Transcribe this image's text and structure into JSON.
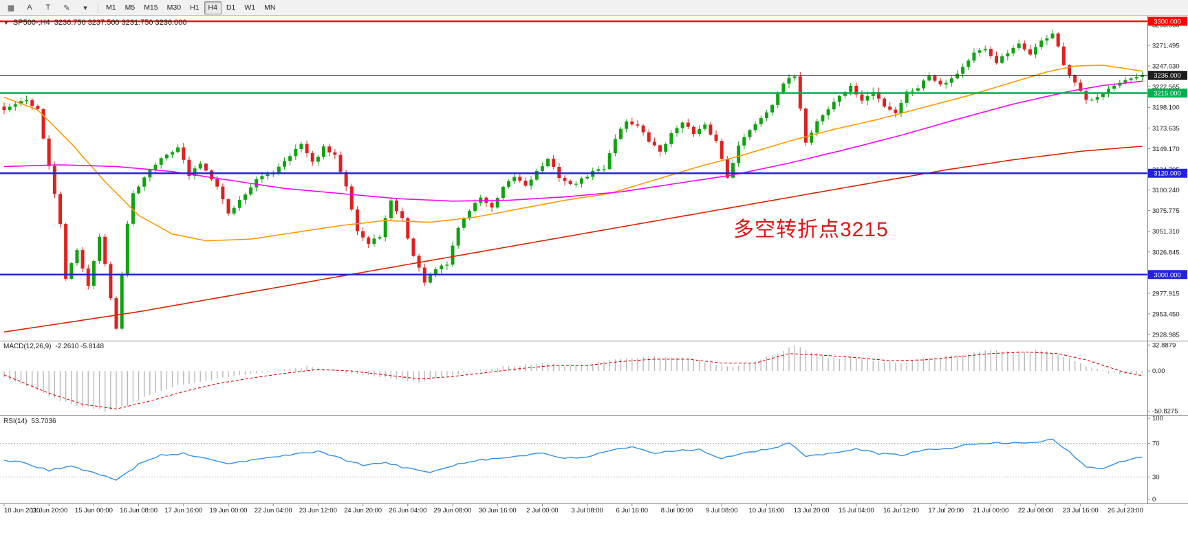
{
  "toolbar": {
    "tools": [
      {
        "name": "docking-handle-icon",
        "glyph": "▦"
      },
      {
        "name": "cursor-mode-icon",
        "glyph": "A"
      },
      {
        "name": "text-label-icon",
        "glyph": "T"
      },
      {
        "name": "draw-pencil-icon",
        "glyph": "✎"
      },
      {
        "name": "tool-dropdown-icon",
        "glyph": "▾"
      }
    ],
    "timeframes": [
      "M1",
      "M5",
      "M15",
      "M30",
      "H1",
      "H4",
      "D1",
      "W1",
      "MN"
    ],
    "active_timeframe": "H4"
  },
  "chart": {
    "title": "SP500-,H4",
    "ohlc": "3236.750 3237.500 3231.750 3236.000",
    "annotation": {
      "text": "多空转折点3215",
      "color": "#e01414"
    }
  },
  "chart_data": {
    "type": "candlestick",
    "symbol": "SP500-",
    "timeframe": "H4",
    "bars": 204,
    "colors": {
      "up": "#10a310",
      "down": "#e02020",
      "ma_fast": "#ff9900",
      "ma_mid": "#ff00ff",
      "ma_slow": "#dd2200",
      "macd_hist": "#b8b8b8",
      "macd_signal": "#dd0000",
      "rsi_line": "#2e90e8",
      "axis_text": "#1a1a1a",
      "border": "#808080"
    },
    "price_axis": {
      "visible_range": [
        2921.7,
        3306.5
      ],
      "ticks": [
        "3295.960",
        "3271.495",
        "3247.030",
        "3222.565",
        "3198.100",
        "3173.635",
        "3149.170",
        "3124.705",
        "3100.240",
        "3075.775",
        "3051.310",
        "3026.845",
        "3002.380",
        "2977.915",
        "2953.450",
        "2928.985"
      ]
    },
    "levels": [
      {
        "price": 3300.0,
        "label": "3300.000",
        "color": "#ff0000",
        "width": 2.5,
        "style": "line"
      },
      {
        "price": 3236.0,
        "label": "3236.000",
        "color": "#1c1c1c",
        "width": 1,
        "style": "current"
      },
      {
        "price": 3215.0,
        "label": "3215.000",
        "color": "#00b050",
        "width": 2.5,
        "style": "line"
      },
      {
        "price": 3120.0,
        "label": "3120.000",
        "color": "#2222dd",
        "width": 2.5,
        "style": "line"
      },
      {
        "price": 3000.0,
        "label": "3000.000",
        "color": "#2222dd",
        "width": 2.5,
        "style": "line"
      }
    ],
    "close_keypoints": [
      [
        0,
        3195
      ],
      [
        2,
        3202
      ],
      [
        4,
        3206
      ],
      [
        6,
        3196
      ],
      [
        8,
        3128
      ],
      [
        10,
        3060
      ],
      [
        11,
        2996
      ],
      [
        13,
        3028
      ],
      [
        15,
        2988
      ],
      [
        17,
        3044
      ],
      [
        18,
        3012
      ],
      [
        20,
        2936
      ],
      [
        22,
        3062
      ],
      [
        23,
        3096
      ],
      [
        26,
        3126
      ],
      [
        29,
        3142
      ],
      [
        31,
        3152
      ],
      [
        33,
        3117
      ],
      [
        35,
        3132
      ],
      [
        38,
        3106
      ],
      [
        40,
        3072
      ],
      [
        43,
        3096
      ],
      [
        45,
        3112
      ],
      [
        48,
        3122
      ],
      [
        51,
        3142
      ],
      [
        53,
        3154
      ],
      [
        55,
        3132
      ],
      [
        57,
        3150
      ],
      [
        59,
        3140
      ],
      [
        61,
        3106
      ],
      [
        63,
        3052
      ],
      [
        65,
        3036
      ],
      [
        67,
        3046
      ],
      [
        69,
        3086
      ],
      [
        71,
        3066
      ],
      [
        73,
        3022
      ],
      [
        75,
        2992
      ],
      [
        77,
        3006
      ],
      [
        79,
        3012
      ],
      [
        81,
        3056
      ],
      [
        83,
        3076
      ],
      [
        85,
        3092
      ],
      [
        87,
        3078
      ],
      [
        89,
        3102
      ],
      [
        91,
        3116
      ],
      [
        93,
        3106
      ],
      [
        95,
        3122
      ],
      [
        97,
        3136
      ],
      [
        99,
        3116
      ],
      [
        101,
        3106
      ],
      [
        103,
        3112
      ],
      [
        105,
        3122
      ],
      [
        107,
        3126
      ],
      [
        109,
        3162
      ],
      [
        111,
        3182
      ],
      [
        113,
        3176
      ],
      [
        115,
        3158
      ],
      [
        117,
        3146
      ],
      [
        119,
        3166
      ],
      [
        121,
        3182
      ],
      [
        123,
        3166
      ],
      [
        125,
        3176
      ],
      [
        127,
        3158
      ],
      [
        129,
        3116
      ],
      [
        131,
        3152
      ],
      [
        133,
        3172
      ],
      [
        135,
        3186
      ],
      [
        137,
        3202
      ],
      [
        139,
        3226
      ],
      [
        141,
        3236
      ],
      [
        142,
        3198
      ],
      [
        143,
        3156
      ],
      [
        145,
        3182
      ],
      [
        147,
        3196
      ],
      [
        149,
        3212
      ],
      [
        151,
        3222
      ],
      [
        153,
        3206
      ],
      [
        155,
        3216
      ],
      [
        157,
        3200
      ],
      [
        159,
        3192
      ],
      [
        161,
        3216
      ],
      [
        163,
        3222
      ],
      [
        165,
        3236
      ],
      [
        167,
        3226
      ],
      [
        169,
        3232
      ],
      [
        171,
        3246
      ],
      [
        173,
        3262
      ],
      [
        175,
        3266
      ],
      [
        177,
        3252
      ],
      [
        179,
        3262
      ],
      [
        181,
        3272
      ],
      [
        183,
        3262
      ],
      [
        185,
        3276
      ],
      [
        187,
        3286
      ],
      [
        188,
        3270
      ],
      [
        189,
        3246
      ],
      [
        191,
        3226
      ],
      [
        193,
        3206
      ],
      [
        195,
        3212
      ],
      [
        197,
        3220
      ],
      [
        199,
        3226
      ],
      [
        201,
        3231
      ],
      [
        203,
        3236
      ]
    ],
    "moving_averages": [
      {
        "name": "ma-fast-orange",
        "color_key": "ma_fast",
        "keypoints": [
          [
            0,
            3210
          ],
          [
            6,
            3195
          ],
          [
            12,
            3155
          ],
          [
            18,
            3110
          ],
          [
            24,
            3070
          ],
          [
            30,
            3048
          ],
          [
            36,
            3040
          ],
          [
            44,
            3042
          ],
          [
            52,
            3050
          ],
          [
            60,
            3058
          ],
          [
            68,
            3064
          ],
          [
            76,
            3062
          ],
          [
            84,
            3068
          ],
          [
            92,
            3078
          ],
          [
            100,
            3088
          ],
          [
            108,
            3096
          ],
          [
            116,
            3112
          ],
          [
            124,
            3128
          ],
          [
            132,
            3142
          ],
          [
            140,
            3158
          ],
          [
            148,
            3172
          ],
          [
            156,
            3184
          ],
          [
            164,
            3198
          ],
          [
            172,
            3212
          ],
          [
            180,
            3228
          ],
          [
            186,
            3240
          ],
          [
            191,
            3247
          ],
          [
            196,
            3248
          ],
          [
            200,
            3244
          ],
          [
            203,
            3241
          ]
        ]
      },
      {
        "name": "ma-mid-magenta",
        "color_key": "ma_mid",
        "keypoints": [
          [
            0,
            3128
          ],
          [
            10,
            3130
          ],
          [
            20,
            3128
          ],
          [
            30,
            3122
          ],
          [
            40,
            3112
          ],
          [
            50,
            3102
          ],
          [
            60,
            3096
          ],
          [
            70,
            3090
          ],
          [
            80,
            3087
          ],
          [
            90,
            3088
          ],
          [
            100,
            3092
          ],
          [
            110,
            3098
          ],
          [
            120,
            3108
          ],
          [
            130,
            3118
          ],
          [
            140,
            3132
          ],
          [
            150,
            3148
          ],
          [
            160,
            3165
          ],
          [
            170,
            3184
          ],
          [
            180,
            3202
          ],
          [
            190,
            3217
          ],
          [
            196,
            3224
          ],
          [
            203,
            3229
          ]
        ]
      },
      {
        "name": "ma-slow-red",
        "color_key": "ma_slow",
        "keypoints": [
          [
            0,
            2932
          ],
          [
            12,
            2944
          ],
          [
            24,
            2956
          ],
          [
            36,
            2970
          ],
          [
            48,
            2984
          ],
          [
            60,
            2998
          ],
          [
            72,
            3012
          ],
          [
            84,
            3026
          ],
          [
            96,
            3040
          ],
          [
            108,
            3054
          ],
          [
            120,
            3068
          ],
          [
            132,
            3082
          ],
          [
            144,
            3096
          ],
          [
            156,
            3110
          ],
          [
            168,
            3124
          ],
          [
            180,
            3136
          ],
          [
            192,
            3146
          ],
          [
            203,
            3152
          ]
        ]
      }
    ],
    "macd": {
      "name": "MACD(12,26,9)",
      "values_text": "-2.2610 -5.8148",
      "axis": [
        "32.8879",
        "0.00",
        "-50.8275"
      ],
      "range": [
        -52,
        34
      ],
      "hist_keypoints": [
        [
          0,
          -8
        ],
        [
          6,
          -25
        ],
        [
          10,
          -38
        ],
        [
          14,
          -45
        ],
        [
          18,
          -50.8
        ],
        [
          22,
          -44
        ],
        [
          26,
          -30
        ],
        [
          30,
          -20
        ],
        [
          36,
          -12
        ],
        [
          42,
          -6
        ],
        [
          48,
          0
        ],
        [
          54,
          6
        ],
        [
          58,
          3
        ],
        [
          62,
          -3
        ],
        [
          68,
          -8
        ],
        [
          74,
          -14
        ],
        [
          78,
          -8
        ],
        [
          84,
          0
        ],
        [
          90,
          6
        ],
        [
          96,
          10
        ],
        [
          100,
          6
        ],
        [
          104,
          8
        ],
        [
          110,
          16
        ],
        [
          116,
          18
        ],
        [
          122,
          16
        ],
        [
          126,
          10
        ],
        [
          130,
          6
        ],
        [
          134,
          12
        ],
        [
          138,
          22
        ],
        [
          141,
          32.9
        ],
        [
          144,
          24
        ],
        [
          148,
          16
        ],
        [
          152,
          18
        ],
        [
          156,
          12
        ],
        [
          160,
          10
        ],
        [
          164,
          16
        ],
        [
          168,
          18
        ],
        [
          172,
          22
        ],
        [
          176,
          26
        ],
        [
          180,
          24
        ],
        [
          184,
          26
        ],
        [
          188,
          22
        ],
        [
          191,
          12
        ],
        [
          194,
          4
        ],
        [
          197,
          -2
        ],
        [
          200,
          -4
        ],
        [
          203,
          -2.261
        ]
      ],
      "signal_keypoints": [
        [
          0,
          -5
        ],
        [
          8,
          -28
        ],
        [
          14,
          -42
        ],
        [
          20,
          -48
        ],
        [
          26,
          -38
        ],
        [
          32,
          -26
        ],
        [
          38,
          -16
        ],
        [
          44,
          -9
        ],
        [
          50,
          -3
        ],
        [
          56,
          2
        ],
        [
          62,
          0
        ],
        [
          68,
          -5
        ],
        [
          74,
          -10
        ],
        [
          80,
          -7
        ],
        [
          86,
          -2
        ],
        [
          92,
          3
        ],
        [
          98,
          7
        ],
        [
          104,
          7
        ],
        [
          110,
          12
        ],
        [
          116,
          15
        ],
        [
          122,
          15
        ],
        [
          128,
          10
        ],
        [
          134,
          10
        ],
        [
          140,
          22
        ],
        [
          146,
          20
        ],
        [
          152,
          17
        ],
        [
          158,
          13
        ],
        [
          164,
          14
        ],
        [
          170,
          18
        ],
        [
          176,
          22
        ],
        [
          182,
          24
        ],
        [
          188,
          22
        ],
        [
          193,
          14
        ],
        [
          197,
          5
        ],
        [
          200,
          -2
        ],
        [
          203,
          -5.815
        ]
      ]
    },
    "rsi": {
      "name": "RSI(14)",
      "value_text": "53.7036",
      "axis": [
        "100",
        "70",
        "30",
        "0"
      ],
      "levels": [
        70,
        30
      ],
      "keypoints": [
        [
          0,
          50
        ],
        [
          4,
          46
        ],
        [
          8,
          38
        ],
        [
          12,
          42
        ],
        [
          16,
          36
        ],
        [
          20,
          26
        ],
        [
          24,
          45
        ],
        [
          28,
          56
        ],
        [
          32,
          58
        ],
        [
          36,
          52
        ],
        [
          40,
          46
        ],
        [
          44,
          50
        ],
        [
          48,
          53
        ],
        [
          52,
          58
        ],
        [
          56,
          60
        ],
        [
          60,
          52
        ],
        [
          64,
          44
        ],
        [
          68,
          47
        ],
        [
          72,
          40
        ],
        [
          76,
          36
        ],
        [
          80,
          44
        ],
        [
          84,
          50
        ],
        [
          88,
          52
        ],
        [
          92,
          55
        ],
        [
          96,
          58
        ],
        [
          100,
          52
        ],
        [
          104,
          54
        ],
        [
          108,
          62
        ],
        [
          112,
          65
        ],
        [
          116,
          58
        ],
        [
          120,
          62
        ],
        [
          124,
          63
        ],
        [
          128,
          52
        ],
        [
          132,
          58
        ],
        [
          136,
          63
        ],
        [
          140,
          70
        ],
        [
          143,
          55
        ],
        [
          148,
          58
        ],
        [
          152,
          63
        ],
        [
          156,
          58
        ],
        [
          160,
          56
        ],
        [
          164,
          62
        ],
        [
          168,
          64
        ],
        [
          172,
          68
        ],
        [
          176,
          71
        ],
        [
          180,
          70
        ],
        [
          184,
          72
        ],
        [
          187,
          74
        ],
        [
          190,
          60
        ],
        [
          193,
          42
        ],
        [
          196,
          40
        ],
        [
          199,
          48
        ],
        [
          203,
          53.7
        ]
      ]
    },
    "time_labels": [
      [
        0,
        "10 Jun 2020"
      ],
      [
        8,
        "11 Jun 20:00"
      ],
      [
        16,
        "15 Jun 00:00"
      ],
      [
        24,
        "16 Jun 08:00"
      ],
      [
        32,
        "17 Jun 16:00"
      ],
      [
        40,
        "19 Jun 00:00"
      ],
      [
        48,
        "22 Jun 04:00"
      ],
      [
        56,
        "23 Jun 12:00"
      ],
      [
        64,
        "24 Jun 20:00"
      ],
      [
        72,
        "26 Jun 04:00"
      ],
      [
        80,
        "29 Jun 08:00"
      ],
      [
        88,
        "30 Jun 16:00"
      ],
      [
        96,
        "2 Jul 00:00"
      ],
      [
        104,
        "3 Jul 08:00"
      ],
      [
        112,
        "6 Jul 16:00"
      ],
      [
        120,
        "8 Jul 00:00"
      ],
      [
        128,
        "9 Jul 08:00"
      ],
      [
        136,
        "10 Jul 16:00"
      ],
      [
        144,
        "13 Jul 20:00"
      ],
      [
        152,
        "15 Jul 04:00"
      ],
      [
        160,
        "16 Jul 12:00"
      ],
      [
        168,
        "17 Jul 20:00"
      ],
      [
        176,
        "21 Jul 00:00"
      ],
      [
        184,
        "22 Jul 08:00"
      ],
      [
        192,
        "23 Jul 16:00"
      ],
      [
        200,
        "26 Jul 23:00"
      ]
    ]
  }
}
